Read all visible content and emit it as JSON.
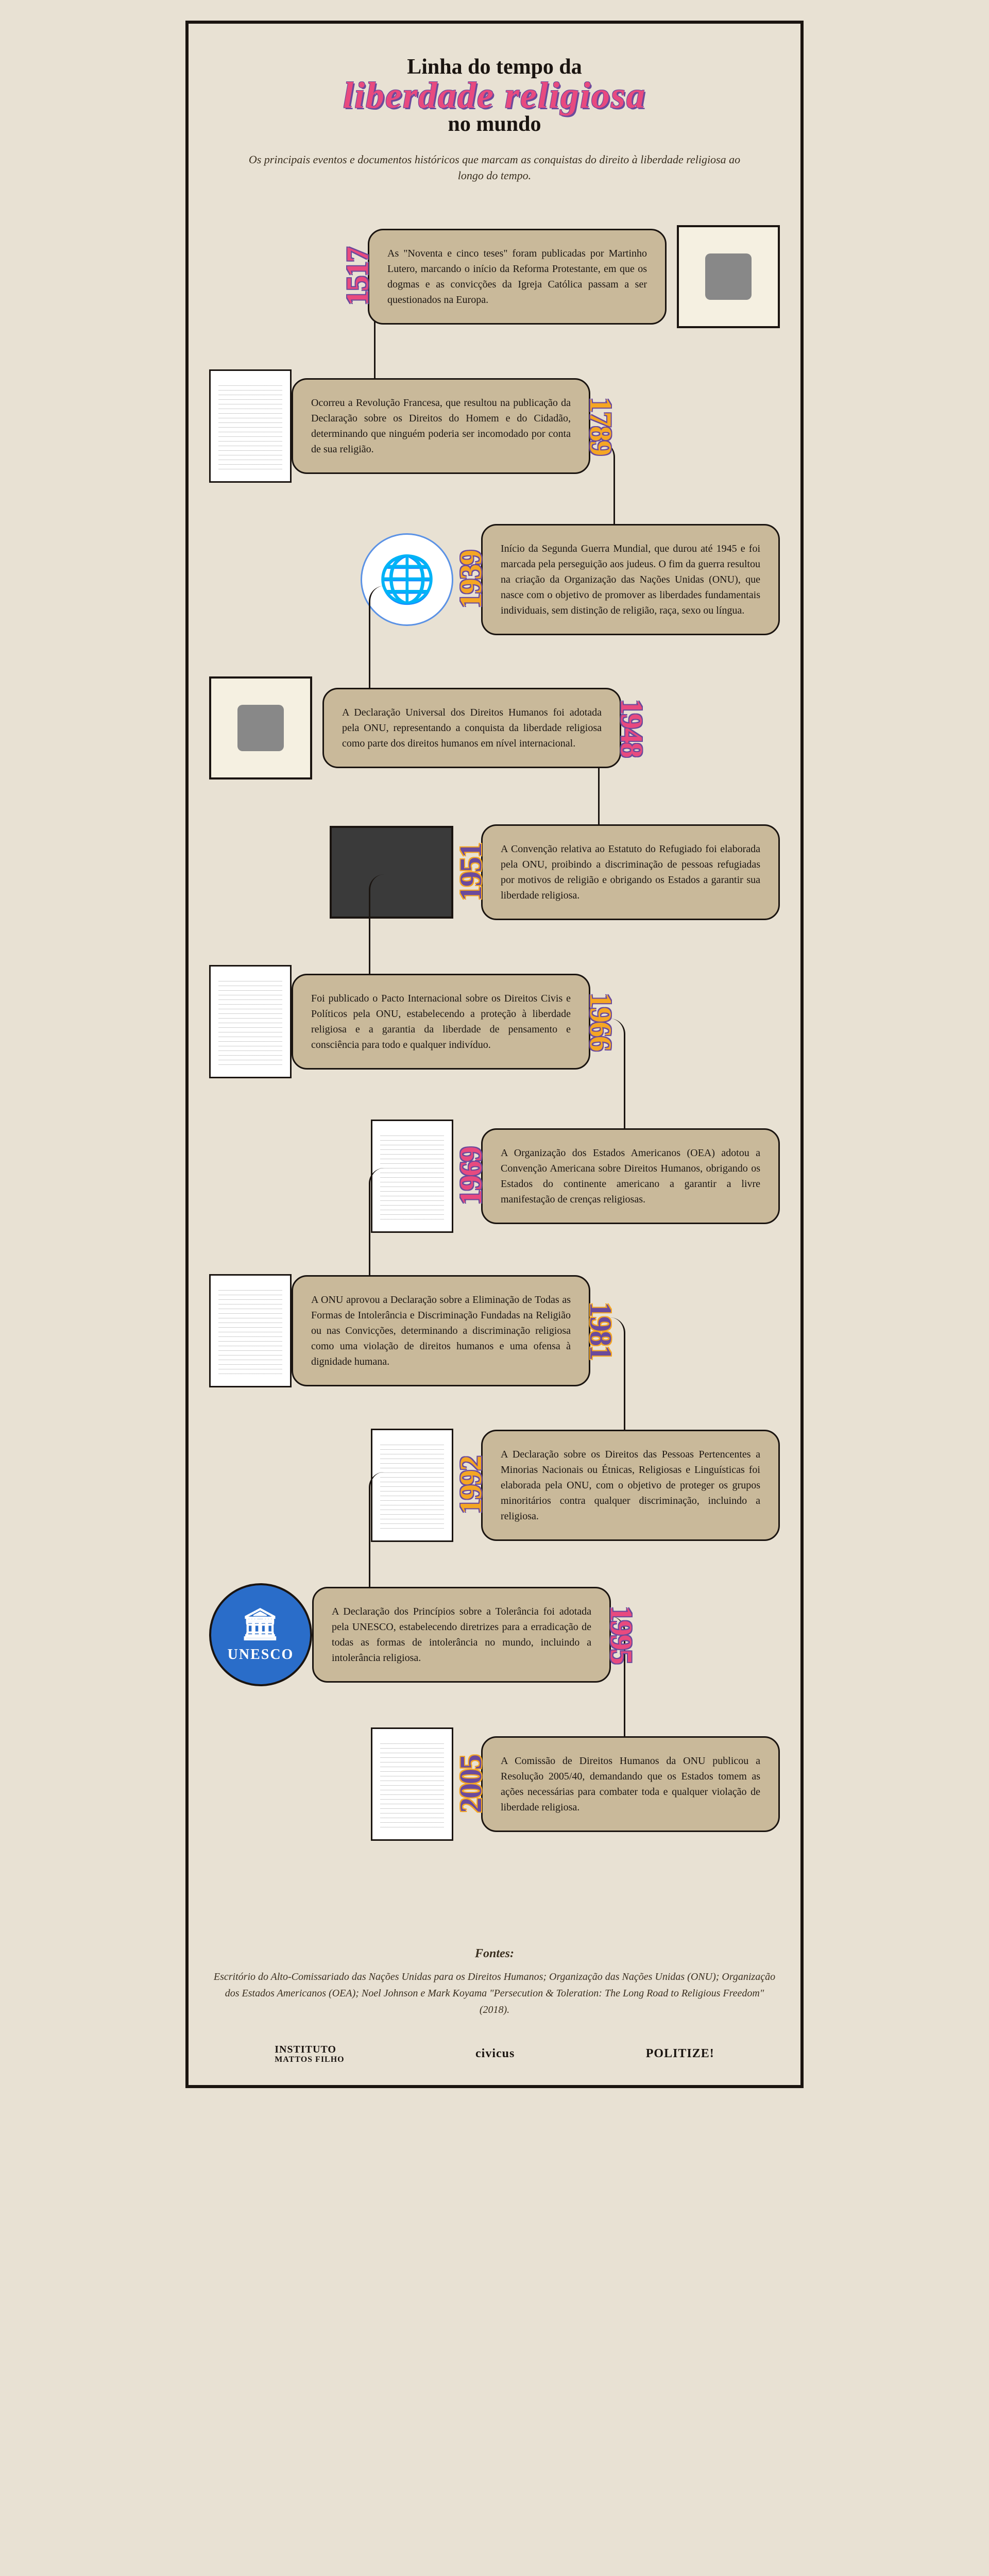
{
  "header": {
    "line1": "Linha do tempo da",
    "line2": "liberdade religiosa",
    "line3": "no mundo"
  },
  "subtitle": "Os principais eventos e documentos históricos que marcam as conquistas do direito à liberdade religiosa ao longo do tempo.",
  "events": [
    {
      "year": "1517",
      "year_color": "pink",
      "side": "right",
      "thumb_type": "photo",
      "text": "As \"Noventa e cinco teses\" foram publicadas por Martinho Lutero, marcando o início da Reforma Protestante, em que os dogmas e as convicções da Igreja Católica passam a ser questionados na Europa."
    },
    {
      "year": "1789",
      "year_color": "orange",
      "side": "left",
      "thumb_type": "doc-ornate",
      "text": "Ocorreu a Revolução Francesa, que resultou na publicação da Declaração sobre os Direitos do Homem e do Cidadão, determinando que ninguém poderia ser incomodado por conta de sua religião."
    },
    {
      "year": "1939",
      "year_color": "orange",
      "side": "right",
      "thumb_type": "un-logo",
      "text": "Início da Segunda Guerra Mundial, que durou até 1945 e foi marcada pela perseguição aos judeus. O fim da guerra resultou na criação da Organização das Nações Unidas (ONU), que nasce com o objetivo de promover as liberdades fundamentais individuais, sem distinção de religião, raça, sexo ou língua."
    },
    {
      "year": "1948",
      "year_color": "pink",
      "side": "left",
      "thumb_type": "photo-doc",
      "text": "A Declaração Universal dos Direitos Humanos foi adotada pela ONU, representando a conquista da liberdade religiosa como parte dos direitos humanos em nível internacional."
    },
    {
      "year": "1951",
      "year_color": "purple",
      "side": "right",
      "thumb_type": "photo-dark",
      "text": "A Convenção relativa ao Estatuto do Refugiado foi elaborada pela ONU, proibindo a discriminação de pessoas refugiadas por motivos de religião e obrigando os Estados a garantir sua liberdade religiosa."
    },
    {
      "year": "1966",
      "year_color": "orange",
      "side": "left",
      "thumb_type": "doc",
      "text": "Foi publicado o Pacto Internacional sobre os Direitos Civis e Políticos pela ONU, estabelecendo a proteção à liberdade religiosa e a garantia da liberdade de pensamento e consciência para todo e qualquer indivíduo."
    },
    {
      "year": "1969",
      "year_color": "pink",
      "side": "right",
      "thumb_type": "doc",
      "text": "A Organização dos Estados Americanos (OEA) adotou a Convenção Americana sobre Direitos Humanos, obrigando os Estados do continente americano a garantir a livre manifestação de crenças religiosas."
    },
    {
      "year": "1981",
      "year_color": "purple",
      "side": "left",
      "thumb_type": "doc",
      "text": "A ONU aprovou a Declaração sobre a Eliminação de Todas as Formas de Intolerância e Discriminação Fundadas na Religião ou nas Convicções, determinando a discriminação religiosa como uma violação de direitos humanos e uma ofensa à dignidade humana."
    },
    {
      "year": "1992",
      "year_color": "orange",
      "side": "right",
      "thumb_type": "doc",
      "text": "A Declaração sobre os Direitos das Pessoas Pertencentes a Minorias Nacionais ou Étnicas, Religiosas e Linguísticas foi elaborada pela ONU, com o objetivo de proteger os grupos minoritários contra qualquer discriminação, incluindo a religiosa."
    },
    {
      "year": "1995",
      "year_color": "pink",
      "side": "left",
      "thumb_type": "unesco",
      "text": "A Declaração dos Princípios sobre a Tolerância foi adotada pela UNESCO, estabelecendo diretrizes para a erradicação de todas as formas de intolerância no mundo, incluindo a intolerância religiosa."
    },
    {
      "year": "2005",
      "year_color": "purple",
      "side": "right",
      "thumb_type": "doc",
      "text": "A Comissão de Direitos Humanos da ONU publicou a Resolução 2005/40, demandando que os Estados tomem as ações necessárias para combater toda e qualquer violação de liberdade religiosa."
    }
  ],
  "sources": {
    "title": "Fontes:",
    "text": "Escritório do Alto-Comissariado das Nações Unidas para os Direitos Humanos; Organização das Nações Unidas (ONU); Organização dos Estados Americanos (OEA); Noel Johnson e Mark Koyama \"Persecution & Toleration: The Long Road to Religious Freedom\" (2018)."
  },
  "footer": {
    "logo1_line1": "INSTITUTO",
    "logo1_line2": "MATTOS FILHO",
    "logo2": "civicus",
    "logo3": "POLITIZE!",
    "unesco_label": "UNESCO"
  },
  "colors": {
    "background": "#e8e1d3",
    "card": "#c9b99a",
    "border": "#1a1410",
    "pink": "#e84a7f",
    "orange": "#f5a623",
    "purple": "#6b4a9c"
  }
}
